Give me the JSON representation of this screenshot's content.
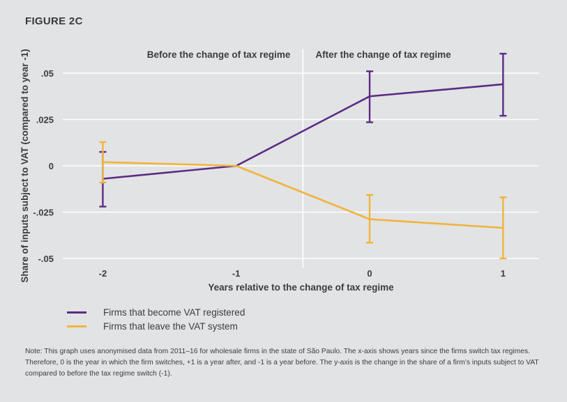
{
  "figure_label": "FIGURE 2C",
  "colors": {
    "purple": "#5b2a86",
    "orange": "#f0b43c",
    "grid": "#ffffff",
    "background": "#e2e3e4"
  },
  "chart_data": {
    "type": "line",
    "title": "",
    "xlabel": "Years relative to the change of tax regime",
    "ylabel": "Share of inputs subject to VAT (compared to year -1)",
    "x": [
      -2,
      -1,
      0,
      1
    ],
    "x_tick_labels": [
      "-2",
      "-1",
      "0",
      "1"
    ],
    "ylim": [
      -0.05,
      0.05
    ],
    "y_ticks": [
      -0.05,
      -0.025,
      0,
      0.025,
      0.05
    ],
    "y_tick_labels": [
      "-.05",
      "-.025",
      "0",
      ".025",
      ".05"
    ],
    "grid": true,
    "divider_x": -0.5,
    "annotations": [
      {
        "text": "Before the change of tax regime",
        "side": "before"
      },
      {
        "text": "After the change of tax regime",
        "side": "after"
      }
    ],
    "series": [
      {
        "name": "Firms that become VAT registered",
        "color": "#5b2a86",
        "values": [
          -0.007,
          0,
          0.0375,
          0.044
        ],
        "ci_low": [
          -0.022,
          null,
          0.0235,
          0.027
        ],
        "ci_high": [
          0.0075,
          null,
          0.051,
          0.0605
        ]
      },
      {
        "name": "Firms that leave the VAT system",
        "color": "#f0b43c",
        "values": [
          0.002,
          0,
          -0.0288,
          -0.0335
        ],
        "ci_low": [
          -0.009,
          null,
          -0.0415,
          -0.05
        ],
        "ci_high": [
          0.0128,
          null,
          -0.0157,
          -0.017
        ]
      }
    ]
  },
  "note": "Note: This graph uses anonymised data from 2011–16 for wholesale firms in the state of São Paulo. The x-axis shows years since the firms switch tax regimes. Therefore, 0 is the year in which the firm switches, +1 is a year after, and -1 is a year before. The y-axis is the change in the share of a firm’s inputs subject to VAT compared to before the tax regime switch (-1)."
}
